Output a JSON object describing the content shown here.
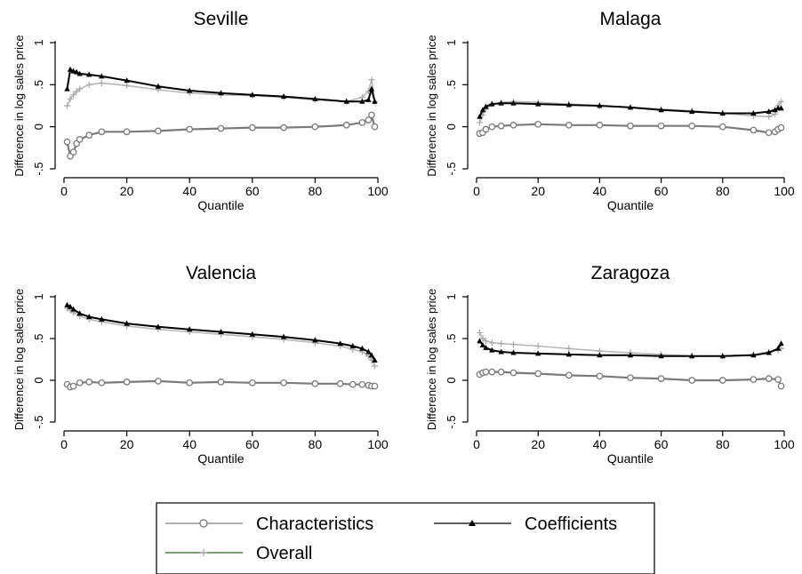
{
  "chart_data": [
    {
      "type": "line",
      "title": "Seville",
      "xlabel": "Quantile",
      "ylabel": "Difference in log sales price",
      "xlim": [
        0,
        100
      ],
      "ylim": [
        -0.5,
        1
      ],
      "xticks": [
        0,
        20,
        40,
        60,
        80,
        100
      ],
      "xtick_labels": [
        "0",
        "20",
        "40",
        "60",
        "80",
        "100"
      ],
      "yticks": [
        -0.5,
        0,
        0.5,
        1
      ],
      "ytick_labels": [
        "-.5",
        "0",
        ".5",
        "1"
      ],
      "x": [
        1,
        2,
        3,
        4,
        5,
        8,
        12,
        20,
        30,
        40,
        50,
        60,
        70,
        80,
        90,
        95,
        97,
        98,
        99
      ],
      "series": [
        {
          "name": "Characteristics",
          "values": [
            -0.18,
            -0.35,
            -0.3,
            -0.2,
            -0.15,
            -0.1,
            -0.06,
            -0.06,
            -0.05,
            -0.03,
            -0.02,
            -0.01,
            -0.01,
            0,
            0.02,
            0.05,
            0.08,
            0.14,
            0.0
          ]
        },
        {
          "name": "Coefficients",
          "values": [
            0.45,
            0.68,
            0.66,
            0.65,
            0.63,
            0.62,
            0.6,
            0.55,
            0.48,
            0.43,
            0.4,
            0.38,
            0.36,
            0.33,
            0.3,
            0.3,
            0.32,
            0.45,
            0.3
          ]
        },
        {
          "name": "Overall",
          "values": [
            0.25,
            0.33,
            0.38,
            0.42,
            0.45,
            0.5,
            0.52,
            0.49,
            0.44,
            0.4,
            0.38,
            0.37,
            0.35,
            0.32,
            0.3,
            0.35,
            0.42,
            0.56,
            0.3
          ]
        }
      ]
    },
    {
      "type": "line",
      "title": "Malaga",
      "xlabel": "Quantile",
      "ylabel": "Difference in log sales price",
      "xlim": [
        0,
        100
      ],
      "ylim": [
        -0.5,
        1
      ],
      "xticks": [
        0,
        20,
        40,
        60,
        80,
        100
      ],
      "xtick_labels": [
        "0",
        "20",
        "40",
        "60",
        "80",
        "100"
      ],
      "yticks": [
        -0.5,
        0,
        0.5,
        1
      ],
      "ytick_labels": [
        "-.5",
        "0",
        ".5",
        "1"
      ],
      "x": [
        1,
        2,
        3,
        5,
        8,
        12,
        20,
        30,
        40,
        50,
        60,
        70,
        80,
        90,
        95,
        97,
        98,
        99
      ],
      "series": [
        {
          "name": "Characteristics",
          "values": [
            -0.08,
            -0.07,
            -0.03,
            0.0,
            0.01,
            0.02,
            0.03,
            0.02,
            0.02,
            0.01,
            0.01,
            0.01,
            0.0,
            -0.04,
            -0.07,
            -0.06,
            -0.03,
            -0.01
          ]
        },
        {
          "name": "Coefficients",
          "values": [
            0.12,
            0.2,
            0.24,
            0.27,
            0.28,
            0.28,
            0.27,
            0.26,
            0.25,
            0.23,
            0.2,
            0.18,
            0.16,
            0.16,
            0.18,
            0.2,
            0.22,
            0.22
          ]
        },
        {
          "name": "Overall",
          "values": [
            0.05,
            0.14,
            0.21,
            0.27,
            0.29,
            0.3,
            0.29,
            0.27,
            0.25,
            0.23,
            0.21,
            0.19,
            0.16,
            0.13,
            0.12,
            0.15,
            0.25,
            0.3
          ]
        }
      ]
    },
    {
      "type": "line",
      "title": "Valencia",
      "xlabel": "Quantile",
      "ylabel": "Difference in log sales price",
      "xlim": [
        0,
        100
      ],
      "ylim": [
        -0.5,
        1
      ],
      "xticks": [
        0,
        20,
        40,
        60,
        80,
        100
      ],
      "xtick_labels": [
        "0",
        "20",
        "40",
        "60",
        "80",
        "100"
      ],
      "yticks": [
        -0.5,
        0,
        0.5,
        1
      ],
      "ytick_labels": [
        "-.5",
        "0",
        ".5",
        "1"
      ],
      "x": [
        1,
        2,
        3,
        5,
        8,
        12,
        20,
        30,
        40,
        50,
        60,
        70,
        80,
        88,
        92,
        95,
        97,
        98,
        99
      ],
      "series": [
        {
          "name": "Characteristics",
          "values": [
            -0.05,
            -0.08,
            -0.07,
            -0.03,
            -0.02,
            -0.03,
            -0.02,
            -0.01,
            -0.03,
            -0.02,
            -0.03,
            -0.03,
            -0.04,
            -0.04,
            -0.05,
            -0.05,
            -0.06,
            -0.07,
            -0.07
          ]
        },
        {
          "name": "Coefficients",
          "values": [
            0.9,
            0.88,
            0.85,
            0.8,
            0.76,
            0.73,
            0.68,
            0.64,
            0.61,
            0.58,
            0.55,
            0.52,
            0.48,
            0.44,
            0.41,
            0.38,
            0.34,
            0.3,
            0.24
          ]
        },
        {
          "name": "Overall",
          "values": [
            0.86,
            0.84,
            0.81,
            0.77,
            0.73,
            0.7,
            0.65,
            0.61,
            0.58,
            0.55,
            0.52,
            0.49,
            0.45,
            0.41,
            0.37,
            0.34,
            0.29,
            0.24,
            0.17
          ]
        }
      ]
    },
    {
      "type": "line",
      "title": "Zaragoza",
      "xlabel": "Quantile",
      "ylabel": "Difference in log sales price",
      "xlim": [
        0,
        100
      ],
      "ylim": [
        -0.5,
        1
      ],
      "xticks": [
        0,
        20,
        40,
        60,
        80,
        100
      ],
      "xtick_labels": [
        "0",
        "20",
        "40",
        "60",
        "80",
        "100"
      ],
      "yticks": [
        -0.5,
        0,
        0.5,
        1
      ],
      "ytick_labels": [
        "-.5",
        "0",
        ".5",
        "1"
      ],
      "x": [
        1,
        2,
        3,
        5,
        8,
        12,
        20,
        30,
        40,
        50,
        60,
        70,
        80,
        90,
        95,
        98,
        99
      ],
      "series": [
        {
          "name": "Characteristics",
          "values": [
            0.07,
            0.09,
            0.1,
            0.1,
            0.1,
            0.09,
            0.08,
            0.06,
            0.05,
            0.03,
            0.02,
            0.0,
            0.0,
            0.01,
            0.02,
            0.01,
            -0.07
          ]
        },
        {
          "name": "Coefficients",
          "values": [
            0.47,
            0.42,
            0.39,
            0.36,
            0.34,
            0.33,
            0.32,
            0.31,
            0.3,
            0.3,
            0.29,
            0.29,
            0.29,
            0.3,
            0.33,
            0.38,
            0.44
          ]
        },
        {
          "name": "Overall",
          "values": [
            0.57,
            0.5,
            0.47,
            0.45,
            0.44,
            0.43,
            0.41,
            0.38,
            0.35,
            0.33,
            0.31,
            0.29,
            0.29,
            0.31,
            0.34,
            0.36,
            0.38
          ]
        }
      ]
    }
  ],
  "legend": {
    "items": [
      {
        "label": "Characteristics",
        "color": "#808080",
        "marker": "circle"
      },
      {
        "label": "Coefficients",
        "color": "#000000",
        "marker": "triangle"
      },
      {
        "label": "Overall",
        "color": "#2e6b1f",
        "marker": "plus"
      }
    ]
  },
  "colors": {
    "characteristics": "#7a7a7a",
    "coefficients": "#000000",
    "overall": "#b8b8b8",
    "overall_line": "#2e6b1f"
  }
}
